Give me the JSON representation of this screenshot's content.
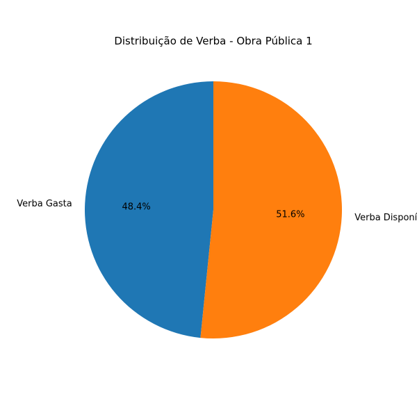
{
  "chart_data": {
    "type": "pie",
    "title": "Distribuição de Verba - Obra Pública 1",
    "slices": [
      {
        "label": "Verba Gasta",
        "value": 48.4,
        "pct_label": "48.4%",
        "color": "#1f77b4"
      },
      {
        "label": "Verba Disponível",
        "value": 51.6,
        "pct_label": "51.6%",
        "color": "#ff7f0e"
      }
    ],
    "start_angle_deg": 90,
    "direction": "counterclockwise"
  }
}
